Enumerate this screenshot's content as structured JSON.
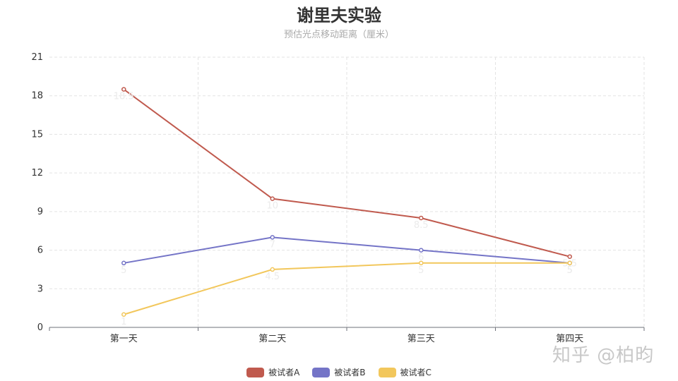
{
  "chart_data": {
    "type": "line",
    "title": "谢里夫实验",
    "subtitle": "预估光点移动距离（厘米）",
    "categories": [
      "第一天",
      "第二天",
      "第三天",
      "第四天"
    ],
    "ylim": [
      0,
      21
    ],
    "yticks": [
      0,
      3,
      6,
      9,
      12,
      15,
      18,
      21
    ],
    "grid": true,
    "legend_position": "bottom",
    "series": [
      {
        "name": "被试者A",
        "values": [
          18.5,
          10,
          8.5,
          5.5
        ],
        "color": "#c05a4e"
      },
      {
        "name": "被试者B",
        "values": [
          5,
          7,
          6,
          5
        ],
        "color": "#7474c7"
      },
      {
        "name": "被试者C",
        "values": [
          1,
          4.5,
          5,
          5
        ],
        "color": "#f2c75c"
      }
    ]
  },
  "watermark": "知乎 @柏昀"
}
